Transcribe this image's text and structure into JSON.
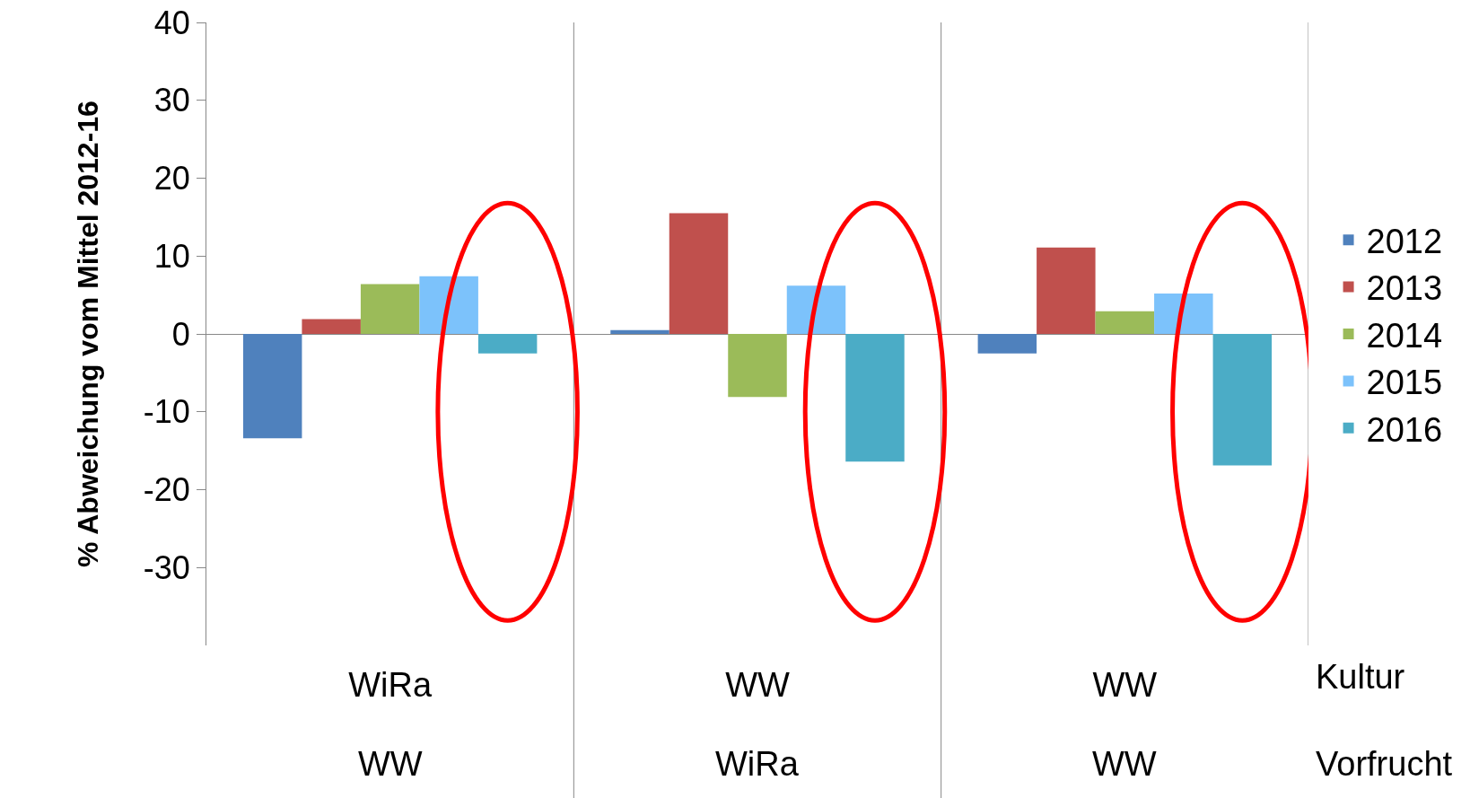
{
  "chart_data": {
    "type": "bar",
    "ylabel": "% Abweichung vom Mittel 2012-16",
    "categories": [
      "WiRa",
      "WW",
      "WW"
    ],
    "series": [
      {
        "name": "2012",
        "color": "#4f81bd",
        "values": [
          -13.4,
          0.5,
          -2.5
        ]
      },
      {
        "name": "2013",
        "color": "#c0504d",
        "values": [
          1.9,
          15.5,
          11.1
        ]
      },
      {
        "name": "2014",
        "color": "#9bbb59",
        "values": [
          6.4,
          -8.1,
          2.9
        ]
      },
      {
        "name": "2015",
        "color": "#7cc2fb",
        "values": [
          7.4,
          6.2,
          5.2
        ]
      },
      {
        "name": "2016",
        "color": "#4bacc6",
        "values": [
          -2.5,
          -16.4,
          -16.9
        ]
      }
    ],
    "annotations": [
      "Kultur",
      "Vorfrucht",
      "WW",
      "WiRa",
      "WW"
    ],
    "ylim": [
      -40,
      40
    ],
    "yticks": [
      -30,
      -20,
      -10,
      0,
      10,
      20,
      30,
      40
    ],
    "legend": "right"
  }
}
